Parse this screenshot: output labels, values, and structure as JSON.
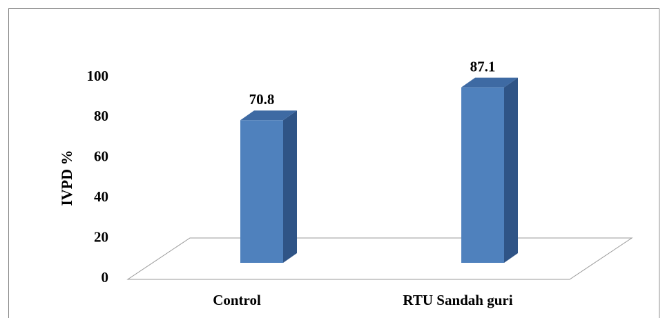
{
  "chart_data": {
    "type": "bar3d",
    "y_label": "IVPD %",
    "categories": [
      "Control",
      "RTU Sandah guri"
    ],
    "values": [
      70.8,
      87.1
    ],
    "color": "#4f81bd",
    "ylim": [
      0,
      100
    ],
    "yticks": [
      0,
      20,
      40,
      60,
      80,
      100
    ],
    "grid": false
  }
}
